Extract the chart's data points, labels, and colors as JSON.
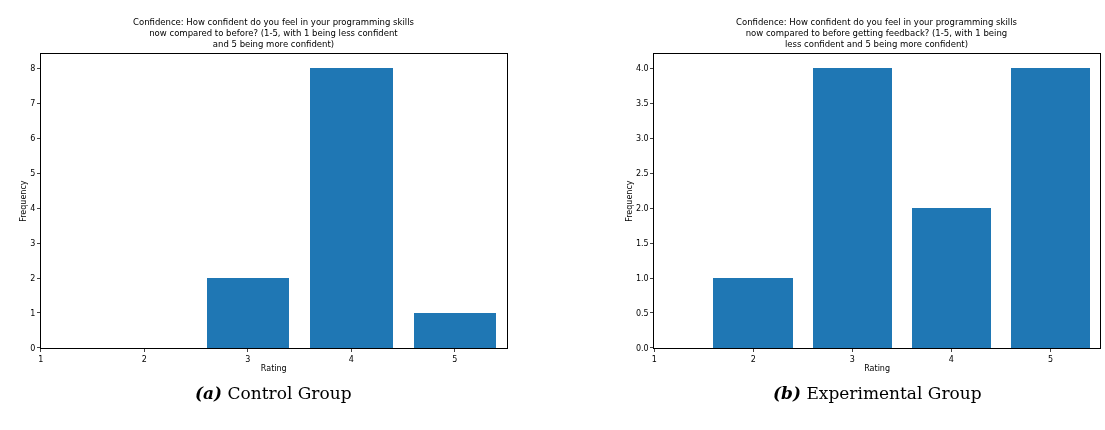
{
  "chart_data": [
    {
      "type": "bar",
      "title": "Confidence: How confident do you feel in your programming skills\nnow compared to before? (1-5, with 1 being less confident\nand 5 being more confident)",
      "xlabel": "Rating",
      "ylabel": "Frequency",
      "x": [
        3,
        4,
        5
      ],
      "values": [
        2,
        8,
        1
      ],
      "color": "#1f77b4",
      "xlim": [
        1,
        5.5
      ],
      "xticks": [
        1,
        2,
        3,
        4,
        5
      ],
      "ylim": [
        0,
        8.4
      ],
      "yticks": [
        0,
        1,
        2,
        3,
        4,
        5,
        6,
        7,
        8
      ],
      "annotations": [
        "(a) Control Group"
      ]
    },
    {
      "type": "bar",
      "title": "Confidence: How confident do you feel in your programming skills\nnow compared to before getting feedback? (1-5, with 1 being\nless confident and 5 being more confident)",
      "xlabel": "Rating",
      "ylabel": "Frequency",
      "x": [
        2,
        3,
        4,
        5
      ],
      "values": [
        1,
        4,
        2,
        4
      ],
      "color": "#1f77b4",
      "xlim": [
        1,
        5.5
      ],
      "xticks": [
        1,
        2,
        3,
        4,
        5
      ],
      "ylim": [
        0,
        4.2
      ],
      "yticks": [
        {
          "value": 0,
          "label": "0.0"
        },
        {
          "value": 0.5,
          "label": "0.5"
        },
        {
          "value": 1,
          "label": "1.0"
        },
        {
          "value": 1.5,
          "label": "1.5"
        },
        {
          "value": 2,
          "label": "2.0"
        },
        {
          "value": 2.5,
          "label": "2.5"
        },
        {
          "value": 3,
          "label": "3.0"
        },
        {
          "value": 3.5,
          "label": "3.5"
        },
        {
          "value": 4,
          "label": "4.0"
        }
      ],
      "annotations": [
        "(b) Experimental Group"
      ]
    }
  ]
}
